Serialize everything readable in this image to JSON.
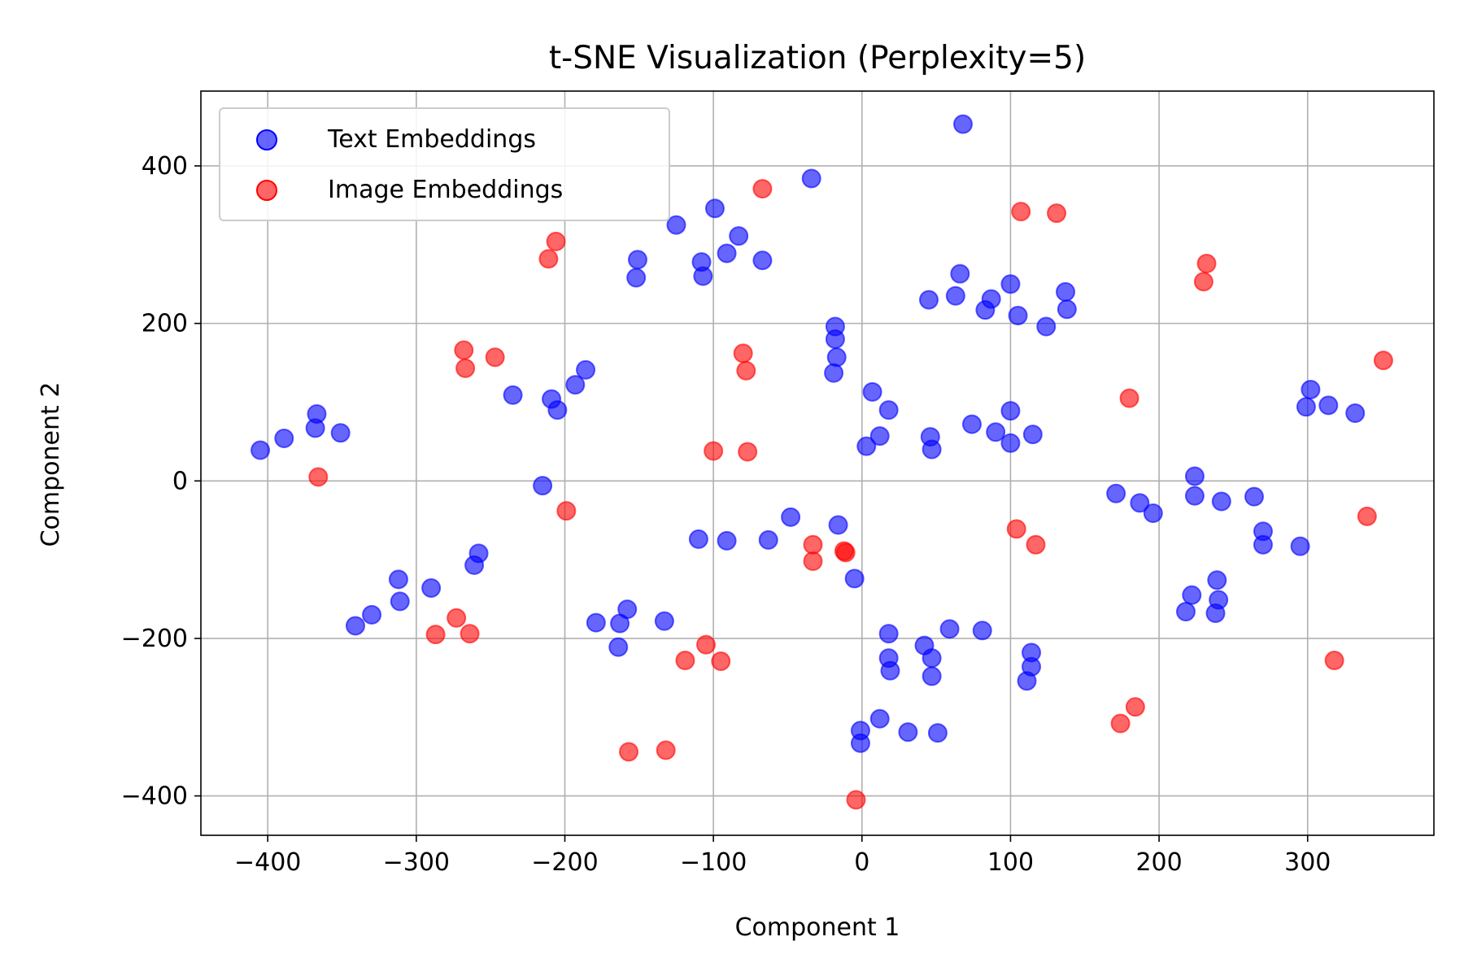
{
  "chart_data": {
    "type": "scatter",
    "title": "t-SNE Visualization (Perplexity=5)",
    "xlabel": "Component 1",
    "ylabel": "Component 2",
    "xlim": [
      -445,
      385
    ],
    "ylim": [
      -450,
      495
    ],
    "xticks": [
      -400,
      -300,
      -200,
      -100,
      0,
      100,
      200,
      300
    ],
    "yticks": [
      -400,
      -200,
      0,
      200,
      400
    ],
    "xtick_labels": [
      "−400",
      "−300",
      "−200",
      "−100",
      "0",
      "100",
      "200",
      "300"
    ],
    "ytick_labels": [
      "−400",
      "−200",
      "0",
      "200",
      "400"
    ],
    "grid": true,
    "legend_position": "top-left",
    "series": [
      {
        "name": "Text Embeddings",
        "color": "#0000ff",
        "points": [
          [
            68,
            453
          ],
          [
            -34,
            384
          ],
          [
            -99,
            346
          ],
          [
            -125,
            325
          ],
          [
            -83,
            311
          ],
          [
            -108,
            278
          ],
          [
            -151,
            281
          ],
          [
            -152,
            258
          ],
          [
            -107,
            260
          ],
          [
            -91,
            289
          ],
          [
            -67,
            280
          ],
          [
            -18,
            196
          ],
          [
            -18,
            180
          ],
          [
            -17,
            157
          ],
          [
            -19,
            137
          ],
          [
            66,
            263
          ],
          [
            45,
            230
          ],
          [
            63,
            235
          ],
          [
            83,
            217
          ],
          [
            87,
            231
          ],
          [
            100,
            250
          ],
          [
            105,
            210
          ],
          [
            124,
            196
          ],
          [
            137,
            240
          ],
          [
            138,
            218
          ],
          [
            7,
            113
          ],
          [
            18,
            90
          ],
          [
            3,
            44
          ],
          [
            12,
            57
          ],
          [
            46,
            56
          ],
          [
            47,
            40
          ],
          [
            74,
            72
          ],
          [
            90,
            62
          ],
          [
            100,
            89
          ],
          [
            100,
            48
          ],
          [
            115,
            59
          ],
          [
            -205,
            90
          ],
          [
            -209,
            104
          ],
          [
            -193,
            122
          ],
          [
            -186,
            141
          ],
          [
            -235,
            109
          ],
          [
            -215,
            -6
          ],
          [
            -367,
            85
          ],
          [
            -368,
            67
          ],
          [
            -389,
            54
          ],
          [
            -405,
            39
          ],
          [
            -351,
            61
          ],
          [
            -258,
            -92
          ],
          [
            -261,
            -107
          ],
          [
            -312,
            -125
          ],
          [
            -311,
            -153
          ],
          [
            -290,
            -136
          ],
          [
            -330,
            -170
          ],
          [
            -341,
            -184
          ],
          [
            -158,
            -163
          ],
          [
            -163,
            -181
          ],
          [
            -179,
            -180
          ],
          [
            -164,
            -211
          ],
          [
            -133,
            -178
          ],
          [
            -110,
            -74
          ],
          [
            -91,
            -76
          ],
          [
            -63,
            -75
          ],
          [
            -48,
            -46
          ],
          [
            -16,
            -56
          ],
          [
            -5,
            -124
          ],
          [
            18,
            -194
          ],
          [
            18,
            -225
          ],
          [
            19,
            -241
          ],
          [
            42,
            -209
          ],
          [
            47,
            -225
          ],
          [
            47,
            -248
          ],
          [
            59,
            -188
          ],
          [
            81,
            -190
          ],
          [
            114,
            -218
          ],
          [
            114,
            -236
          ],
          [
            111,
            -254
          ],
          [
            12,
            -302
          ],
          [
            31,
            -319
          ],
          [
            51,
            -320
          ],
          [
            -1,
            -317
          ],
          [
            -1,
            -333
          ],
          [
            171,
            -16
          ],
          [
            187,
            -28
          ],
          [
            196,
            -41
          ],
          [
            224,
            6
          ],
          [
            224,
            -19
          ],
          [
            242,
            -26
          ],
          [
            264,
            -20
          ],
          [
            270,
            -64
          ],
          [
            270,
            -81
          ],
          [
            295,
            -83
          ],
          [
            222,
            -145
          ],
          [
            218,
            -166
          ],
          [
            239,
            -126
          ],
          [
            240,
            -151
          ],
          [
            238,
            -168
          ],
          [
            299,
            94
          ],
          [
            302,
            116
          ],
          [
            314,
            96
          ],
          [
            332,
            86
          ]
        ]
      },
      {
        "name": "Image Embeddings",
        "color": "#ff0000",
        "points": [
          [
            -67,
            371
          ],
          [
            -211,
            282
          ],
          [
            -206,
            304
          ],
          [
            -268,
            166
          ],
          [
            -267,
            143
          ],
          [
            -247,
            157
          ],
          [
            -80,
            162
          ],
          [
            -78,
            140
          ],
          [
            -100,
            38
          ],
          [
            -77,
            37
          ],
          [
            -366,
            5
          ],
          [
            -199,
            -38
          ],
          [
            107,
            342
          ],
          [
            131,
            340
          ],
          [
            232,
            276
          ],
          [
            230,
            253
          ],
          [
            180,
            105
          ],
          [
            351,
            153
          ],
          [
            -33,
            -81
          ],
          [
            -33,
            -102
          ],
          [
            -12,
            -89
          ],
          [
            -11,
            -91
          ],
          [
            104,
            -61
          ],
          [
            117,
            -81
          ],
          [
            340,
            -45
          ],
          [
            -287,
            -195
          ],
          [
            -273,
            -174
          ],
          [
            -264,
            -194
          ],
          [
            -119,
            -228
          ],
          [
            -105,
            -208
          ],
          [
            -95,
            -229
          ],
          [
            -157,
            -344
          ],
          [
            -132,
            -342
          ],
          [
            -4,
            -405
          ],
          [
            174,
            -308
          ],
          [
            184,
            -287
          ],
          [
            318,
            -228
          ]
        ]
      }
    ]
  }
}
